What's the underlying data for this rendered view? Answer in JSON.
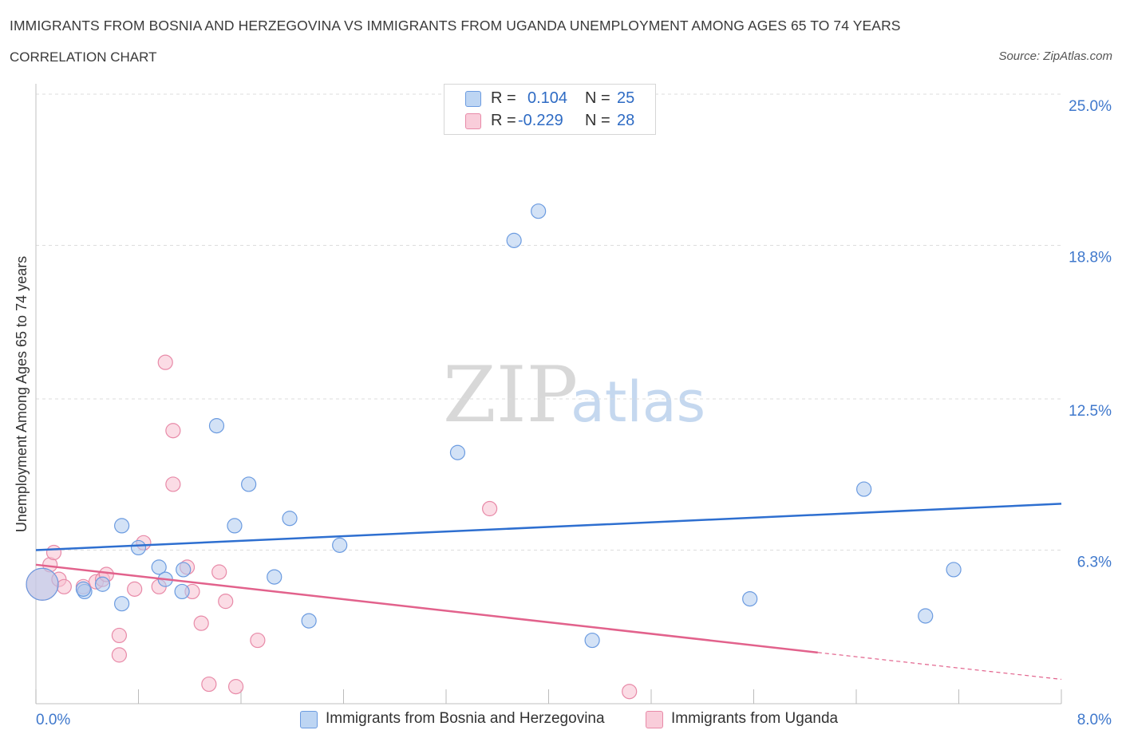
{
  "header": {
    "title": "IMMIGRANTS FROM BOSNIA AND HERZEGOVINA VS IMMIGRANTS FROM UGANDA UNEMPLOYMENT AMONG AGES 65 TO 74 YEARS",
    "subtitle": "CORRELATION CHART",
    "source": "Source: ZipAtlas.com"
  },
  "watermark": {
    "zip": "ZIP",
    "atlas": "atlas"
  },
  "legend": {
    "r_label": "R =",
    "n_label": "N =",
    "series1": {
      "r": "0.104",
      "n": "25"
    },
    "series2": {
      "r": "-0.229",
      "n": "28"
    }
  },
  "colors": {
    "series1_fill": "#aecbef",
    "series1_stroke": "#6b9be0",
    "series1_line": "#2e6fd0",
    "series2_fill": "#f7bfd0",
    "series2_stroke": "#e88aa8",
    "series2_line": "#e2628c",
    "grid": "#dddddd",
    "tick_label": "#3f78cc"
  },
  "chart_data": {
    "type": "scatter",
    "title": "IMMIGRANTS FROM BOSNIA AND HERZEGOVINA VS IMMIGRANTS FROM UGANDA UNEMPLOYMENT AMONG AGES 65 TO 74 YEARS",
    "ylabel": "Unemployment Among Ages 65 to 74 years",
    "xlabel": "",
    "xlim": [
      0,
      8
    ],
    "ylim": [
      0,
      25
    ],
    "x_tick_labels": [
      "0.0%",
      "8.0%"
    ],
    "y_ticks": [
      6.3,
      12.5,
      18.8,
      25.0
    ],
    "y_tick_labels": [
      "6.3%",
      "12.5%",
      "18.8%",
      "25.0%"
    ],
    "grid": true,
    "legend_position": "top-center",
    "series": [
      {
        "name": "Immigrants from Bosnia and Herzegovina",
        "r": 0.104,
        "n": 25,
        "trend": {
          "x0": 0,
          "y0": 6.3,
          "x1": 8,
          "y1": 8.2
        },
        "points": [
          {
            "x": 0.05,
            "y": 4.9,
            "big": true
          },
          {
            "x": 0.38,
            "y": 4.6
          },
          {
            "x": 0.37,
            "y": 4.7
          },
          {
            "x": 0.37,
            "y": 4.5
          },
          {
            "x": 0.37,
            "y": 4.7
          },
          {
            "x": 0.52,
            "y": 4.9
          },
          {
            "x": 0.52,
            "y": 5.0
          },
          {
            "x": 0.52,
            "y": 5.1
          },
          {
            "x": 0.52,
            "y": 4.9
          },
          {
            "x": 0.52,
            "y": 5.0
          },
          {
            "x": 0.52,
            "y": 4.9
          },
          {
            "x": 0.52,
            "y": 4.9
          },
          {
            "x": 0.52,
            "y": 4.9
          },
          {
            "x": 0.52,
            "y": 5.0
          },
          {
            "x": 0.52,
            "y": 5.0
          },
          {
            "x": 0.52,
            "y": 4.9
          },
          {
            "x": 0.52,
            "y": 5.0
          },
          {
            "x": 0.52,
            "y": 4.9
          },
          {
            "x": 0.52,
            "y": 5.0
          },
          {
            "x": 0.52,
            "y": 4.9
          },
          {
            "x": 0.52,
            "y": 5.0
          },
          {
            "x": 0.52,
            "y": 4.9
          },
          {
            "x": 0.52,
            "y": 5.0
          },
          {
            "x": 0.52,
            "y": 4.9
          },
          {
            "x": 0.52,
            "y": 5.0
          }
        ]
      },
      {
        "name": "Immigrants from Uganda",
        "r": -0.229,
        "n": 28,
        "trend": {
          "x0": 0,
          "y0": 5.7,
          "x1": 6.1,
          "y1": 2.1,
          "dash_x1": 8,
          "dash_y1": 1.0
        },
        "points": []
      }
    ]
  },
  "bottom_legend": {
    "series1": "Immigrants from Bosnia and Herzegovina",
    "series2": "Immigrants from Uganda"
  }
}
